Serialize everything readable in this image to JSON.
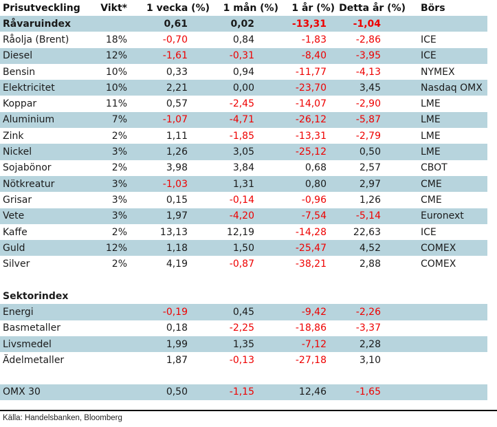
{
  "table": {
    "columns": [
      "Prisutveckling",
      "Vikt*",
      "1 vecka (%)",
      "1 mån (%)",
      "1 år (%)",
      "Detta år (%)",
      "Börs"
    ],
    "rows": [
      {
        "cells": [
          "Råvaruindex",
          "",
          "0,61",
          "0,02",
          "-13,31",
          "-1,04",
          ""
        ],
        "highlight": true,
        "bold": true
      },
      {
        "cells": [
          "Råolja (Brent)",
          "18%",
          "-0,70",
          "0,84",
          "-1,83",
          "-2,86",
          "ICE"
        ],
        "highlight": false,
        "bold": false
      },
      {
        "cells": [
          "Diesel",
          "12%",
          "-1,61",
          "-0,31",
          "-8,40",
          "-3,95",
          "ICE"
        ],
        "highlight": true,
        "bold": false
      },
      {
        "cells": [
          "Bensin",
          "10%",
          "0,33",
          "0,94",
          "-11,77",
          "-4,13",
          "NYMEX"
        ],
        "highlight": false,
        "bold": false
      },
      {
        "cells": [
          "Elektricitet",
          "10%",
          "2,21",
          "0,00",
          "-23,70",
          "3,45",
          "Nasdaq OMX"
        ],
        "highlight": true,
        "bold": false
      },
      {
        "cells": [
          "Koppar",
          "11%",
          "0,57",
          "-2,45",
          "-14,07",
          "-2,90",
          "LME"
        ],
        "highlight": false,
        "bold": false
      },
      {
        "cells": [
          "Aluminium",
          "7%",
          "-1,07",
          "-4,71",
          "-26,12",
          "-5,87",
          "LME"
        ],
        "highlight": true,
        "bold": false
      },
      {
        "cells": [
          "Zink",
          "2%",
          "1,11",
          "-1,85",
          "-13,31",
          "-2,79",
          "LME"
        ],
        "highlight": false,
        "bold": false
      },
      {
        "cells": [
          "Nickel",
          "3%",
          "1,26",
          "3,05",
          "-25,12",
          "0,50",
          "LME"
        ],
        "highlight": true,
        "bold": false
      },
      {
        "cells": [
          "Sojabönor",
          "2%",
          "3,98",
          "3,84",
          "0,68",
          "2,57",
          "CBOT"
        ],
        "highlight": false,
        "bold": false
      },
      {
        "cells": [
          "Nötkreatur",
          "3%",
          "-1,03",
          "1,31",
          "0,80",
          "2,97",
          "CME"
        ],
        "highlight": true,
        "bold": false
      },
      {
        "cells": [
          "Grisar",
          "3%",
          "0,15",
          "-0,14",
          "-0,96",
          "1,26",
          "CME"
        ],
        "highlight": false,
        "bold": false
      },
      {
        "cells": [
          "Vete",
          "3%",
          "1,97",
          "-4,20",
          "-7,54",
          "-5,14",
          "Euronext"
        ],
        "highlight": true,
        "bold": false
      },
      {
        "cells": [
          "Kaffe",
          "2%",
          "13,13",
          "12,19",
          "-14,28",
          "22,63",
          "ICE"
        ],
        "highlight": false,
        "bold": false
      },
      {
        "cells": [
          "Guld",
          "12%",
          "1,18",
          "1,50",
          "-25,47",
          "4,52",
          "COMEX"
        ],
        "highlight": true,
        "bold": false
      },
      {
        "cells": [
          "Silver",
          "2%",
          "4,19",
          "-0,87",
          "-38,21",
          "2,88",
          "COMEX"
        ],
        "highlight": false,
        "bold": false
      },
      {
        "cells": [
          "",
          "",
          "",
          "",
          "",
          "",
          ""
        ],
        "highlight": false,
        "bold": false
      },
      {
        "cells": [
          "Sektorindex",
          "",
          "",
          "",
          "",
          "",
          ""
        ],
        "highlight": false,
        "bold": true
      },
      {
        "cells": [
          "Energi",
          "",
          "-0,19",
          "0,45",
          "-9,42",
          "-2,26",
          ""
        ],
        "highlight": true,
        "bold": false
      },
      {
        "cells": [
          "Basmetaller",
          "",
          "0,18",
          "-2,25",
          "-18,86",
          "-3,37",
          ""
        ],
        "highlight": false,
        "bold": false
      },
      {
        "cells": [
          "Livsmedel",
          "",
          "1,99",
          "1,35",
          "-7,12",
          "2,28",
          ""
        ],
        "highlight": true,
        "bold": false
      },
      {
        "cells": [
          "Ädelmetaller",
          "",
          "1,87",
          "-0,13",
          "-27,18",
          "3,10",
          ""
        ],
        "highlight": false,
        "bold": false
      },
      {
        "cells": [
          "",
          "",
          "",
          "",
          "",
          "",
          ""
        ],
        "highlight": false,
        "bold": false
      },
      {
        "cells": [
          "OMX 30",
          "",
          "0,50",
          "-1,15",
          "12,46",
          "-1,65",
          ""
        ],
        "highlight": true,
        "bold": false
      }
    ]
  },
  "footer": {
    "source": "Källa: Handelsbanken, Bloomberg"
  },
  "colors": {
    "row_highlight": "#b7d4dd",
    "negative_value": "#ee0000",
    "text": "#1a1a1a"
  }
}
